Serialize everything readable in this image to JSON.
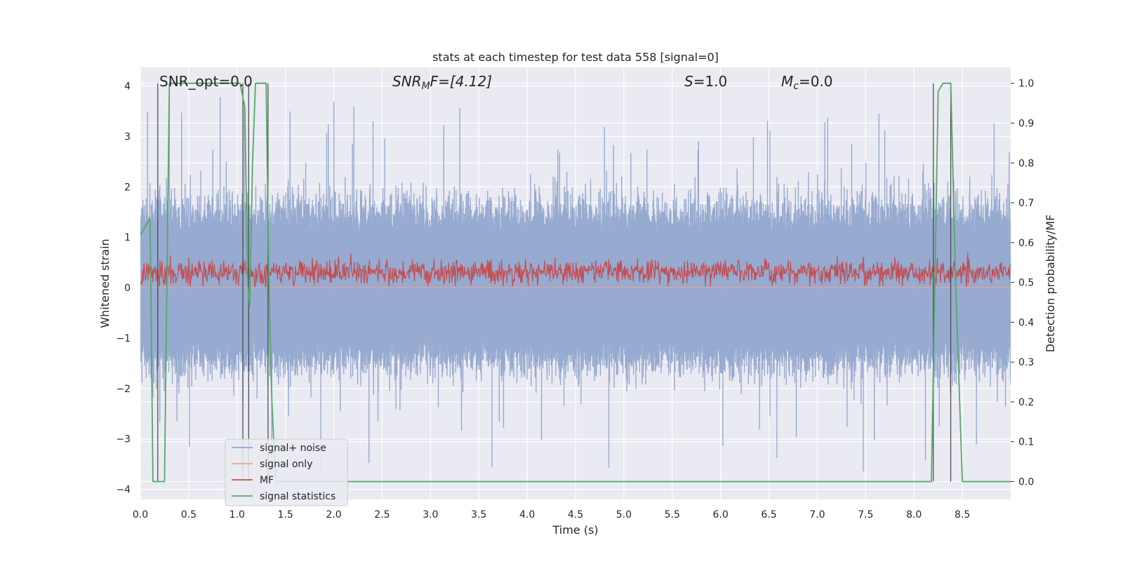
{
  "chart_data": {
    "type": "line",
    "title": "stats at each timestep for test data 558 [signal=0]",
    "xlabel": "Time (s)",
    "ylabel": "Whitened strain",
    "ylabel_right": "Detection probability/MF",
    "xlim": [
      0.0,
      9.0
    ],
    "ylim": [
      -4.2,
      4.37
    ],
    "ylim_right": [
      -0.045,
      1.04
    ],
    "x_ticks": [
      "0.0",
      "0.5",
      "1.0",
      "1.5",
      "2.0",
      "2.5",
      "3.0",
      "3.5",
      "4.0",
      "4.5",
      "5.0",
      "5.5",
      "6.0",
      "6.5",
      "7.0",
      "7.5",
      "8.0",
      "8.5"
    ],
    "y_ticks": [
      "−4",
      "−3",
      "−2",
      "−1",
      "0",
      "1",
      "2",
      "3",
      "4"
    ],
    "y_ticks_right": [
      "0.0",
      "0.1",
      "0.2",
      "0.3",
      "0.4",
      "0.5",
      "0.6",
      "0.7",
      "0.8",
      "0.9",
      "1.0"
    ],
    "annotations": {
      "snr_opt": "SNR_opt=0.0",
      "snr_mf_name": "SNR",
      "snr_mf_sub": "M",
      "snr_mf_rest": "F=[4.12]",
      "s_name": "S",
      "s_value": "=1.0",
      "mc_name": "M",
      "mc_sub": "c",
      "mc_value": "=0.0"
    },
    "legend": {
      "position": "lower-left",
      "entries": [
        "signal+ noise",
        "signal only",
        "MF",
        "signal statistics"
      ]
    },
    "grid": true,
    "series": [
      {
        "name": "signal+ noise",
        "axis": "left",
        "color": "#92a6cd",
        "description": "dense whitened noise spanning roughly -3.7 to 3.9",
        "envelope": {
          "upper_typical": 2.0,
          "upper_max": 3.9,
          "lower_typical": -1.9,
          "lower_min": -3.7
        }
      },
      {
        "name": "signal only",
        "axis": "left",
        "color": "#e8a58d",
        "values_constant": 0.0
      },
      {
        "name": "MF",
        "axis": "right",
        "color": "#c44e52",
        "description": "matched filter output fluctuating about 0.5",
        "range": [
          0.49,
          0.6
        ]
      },
      {
        "name": "signal statistics",
        "axis": "right",
        "color": "#55a868",
        "x": [
          0.0,
          0.05,
          0.1,
          0.13,
          0.2,
          0.25,
          0.3,
          1.0,
          1.03,
          1.08,
          1.11,
          1.13,
          1.16,
          1.19,
          1.24,
          1.3,
          1.33,
          1.36,
          1.38,
          1.4,
          1.5,
          8.0,
          8.18,
          8.25,
          8.3,
          8.38,
          8.43,
          8.5,
          8.6,
          8.7,
          9.0
        ],
        "values": [
          0.62,
          0.64,
          0.66,
          0.0,
          0.0,
          0.0,
          1.0,
          1.0,
          1.0,
          0.94,
          0.5,
          0.44,
          0.8,
          1.0,
          1.0,
          1.0,
          0.5,
          0.2,
          0.1,
          0.0,
          0.0,
          0.0,
          0.0,
          0.98,
          1.0,
          1.0,
          0.5,
          0.0,
          0.0,
          0.0,
          0.0
        ]
      }
    ],
    "vertical_markers_x": [
      0.18,
      1.06,
      1.12,
      1.32,
      8.2,
      8.38
    ]
  }
}
